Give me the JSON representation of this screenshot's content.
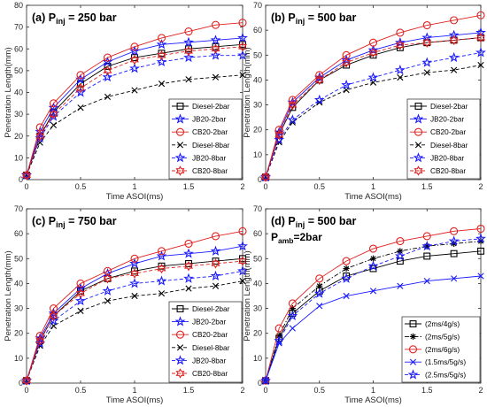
{
  "chart_data": [
    {
      "type": "line",
      "title": "(a) P",
      "title_sub": "inj",
      "title_rest": " = 250 bar",
      "xlabel": "Time ASOI(ms)",
      "ylabel": "Penetration Length(mm)",
      "xlim": [
        0,
        2
      ],
      "ylim": [
        0,
        80
      ],
      "xticks": [
        0,
        0.5,
        1,
        1.5,
        2
      ],
      "xtick_labels": [
        "0",
        "0.5",
        "1",
        "1.5",
        "2"
      ],
      "yticks": [
        0,
        10,
        20,
        30,
        40,
        50,
        60,
        70,
        80
      ],
      "ytick_labels": [
        "0",
        "10",
        "20",
        "30",
        "40",
        "50",
        "60",
        "70",
        "80"
      ],
      "grid": false,
      "legend_position": "bottom-right",
      "x": [
        0,
        0.125,
        0.25,
        0.5,
        0.75,
        1,
        1.25,
        1.5,
        1.75,
        2
      ],
      "series": [
        {
          "name": "Diesel-2bar",
          "color": "#000000",
          "line": "solid",
          "marker": "square",
          "values": [
            2,
            20,
            31,
            44,
            52,
            56,
            58,
            60,
            61,
            62
          ]
        },
        {
          "name": "JB20-2bar",
          "color": "#1a1aff",
          "line": "solid",
          "marker": "star",
          "values": [
            2,
            22,
            33,
            46,
            54,
            59,
            62,
            63,
            64,
            65
          ]
        },
        {
          "name": "CB20-2bar",
          "color": "#e0201e",
          "line": "solid",
          "marker": "circle",
          "values": [
            2,
            24,
            35,
            48,
            56,
            61,
            65,
            68,
            71,
            72
          ]
        },
        {
          "name": "Diesel-8bar",
          "color": "#000000",
          "line": "dashed",
          "marker": "x",
          "values": [
            2,
            17,
            25,
            33,
            38,
            41,
            44,
            46,
            47,
            48
          ]
        },
        {
          "name": "JB20-8bar",
          "color": "#1a1aff",
          "line": "dashed",
          "marker": "star",
          "values": [
            2,
            19,
            29,
            40,
            47,
            51,
            54,
            56,
            57,
            57
          ]
        },
        {
          "name": "CB20-8bar",
          "color": "#e0201e",
          "line": "dashed",
          "marker": "hexagram",
          "values": [
            2,
            20,
            30,
            42,
            50,
            55,
            57,
            59,
            60,
            61
          ]
        }
      ]
    },
    {
      "type": "line",
      "title": "(b) P",
      "title_sub": "inj",
      "title_rest": " = 500 bar",
      "xlabel": "Time ASOI(ms)",
      "ylabel": "Penetration Length(mm)",
      "xlim": [
        0,
        2
      ],
      "ylim": [
        0,
        70
      ],
      "xticks": [
        0,
        0.5,
        1,
        1.5,
        2
      ],
      "xtick_labels": [
        "0",
        "0.5",
        "1",
        "1.5",
        "2"
      ],
      "yticks": [
        0,
        10,
        20,
        30,
        40,
        50,
        60,
        70
      ],
      "ytick_labels": [
        "0",
        "10",
        "20",
        "30",
        "40",
        "50",
        "60",
        "70"
      ],
      "grid": false,
      "legend_position": "bottom-right",
      "x": [
        0,
        0.125,
        0.25,
        0.5,
        0.75,
        1,
        1.25,
        1.5,
        1.75,
        2
      ],
      "series": [
        {
          "name": "Diesel-2bar",
          "color": "#000000",
          "line": "solid",
          "marker": "square",
          "values": [
            1,
            18,
            29,
            40,
            46,
            50,
            53,
            55,
            56,
            57
          ]
        },
        {
          "name": "JB20-2bar",
          "color": "#1a1aff",
          "line": "solid",
          "marker": "star",
          "values": [
            1,
            19,
            31,
            41,
            48,
            52,
            55,
            57,
            58,
            59
          ]
        },
        {
          "name": "CB20-2bar",
          "color": "#e0201e",
          "line": "solid",
          "marker": "circle",
          "values": [
            1,
            20,
            32,
            42,
            50,
            55,
            59,
            62,
            64,
            66
          ]
        },
        {
          "name": "Diesel-8bar",
          "color": "#000000",
          "line": "dashed",
          "marker": "x",
          "values": [
            1,
            15,
            23,
            31,
            36,
            39,
            41,
            43,
            44,
            46
          ]
        },
        {
          "name": "JB20-8bar",
          "color": "#1a1aff",
          "line": "dashed",
          "marker": "star",
          "values": [
            1,
            16,
            24,
            32,
            38,
            41,
            44,
            47,
            49,
            51
          ]
        },
        {
          "name": "CB20-8bar",
          "color": "#e0201e",
          "line": "dashed",
          "marker": "hexagram",
          "values": [
            1,
            18,
            30,
            40,
            47,
            51,
            54,
            55,
            56,
            57
          ]
        }
      ]
    },
    {
      "type": "line",
      "title": "(c) P",
      "title_sub": "inj",
      "title_rest": " = 750 bar",
      "xlabel": "Time ASOI(ms)",
      "ylabel": "Penetration Length(mm)",
      "xlim": [
        0,
        2
      ],
      "ylim": [
        0,
        70
      ],
      "xticks": [
        0,
        0.5,
        1,
        1.5,
        2
      ],
      "xtick_labels": [
        "0",
        "0.5",
        "1",
        "1.5",
        "2"
      ],
      "yticks": [
        0,
        10,
        20,
        30,
        40,
        50,
        60,
        70
      ],
      "ytick_labels": [
        "0",
        "10",
        "20",
        "30",
        "40",
        "50",
        "60",
        "70"
      ],
      "grid": false,
      "legend_position": "bottom-right",
      "x": [
        0,
        0.125,
        0.25,
        0.5,
        0.75,
        1,
        1.25,
        1.5,
        1.75,
        2
      ],
      "series": [
        {
          "name": "Diesel-2bar",
          "color": "#000000",
          "line": "solid",
          "marker": "square",
          "values": [
            1,
            17,
            27,
            37,
            42,
            45,
            47,
            48,
            49,
            50
          ]
        },
        {
          "name": "JB20-2bar",
          "color": "#1a1aff",
          "line": "solid",
          "marker": "star",
          "values": [
            1,
            18,
            28,
            38,
            44,
            48,
            51,
            52,
            53,
            55
          ]
        },
        {
          "name": "CB20-2bar",
          "color": "#e0201e",
          "line": "solid",
          "marker": "circle",
          "values": [
            1,
            19,
            30,
            40,
            45,
            50,
            53,
            56,
            59,
            61
          ]
        },
        {
          "name": "Diesel-8bar",
          "color": "#000000",
          "line": "dashed",
          "marker": "x",
          "values": [
            1,
            15,
            23,
            29,
            33,
            35,
            36,
            38,
            39,
            41
          ]
        },
        {
          "name": "JB20-8bar",
          "color": "#1a1aff",
          "line": "dashed",
          "marker": "star",
          "values": [
            1,
            16,
            25,
            33,
            37,
            40,
            41,
            42,
            43,
            45
          ]
        },
        {
          "name": "CB20-8bar",
          "color": "#e0201e",
          "line": "dashed",
          "marker": "hexagram",
          "values": [
            1,
            17,
            27,
            36,
            42,
            44,
            46,
            47,
            48,
            49
          ]
        }
      ]
    },
    {
      "type": "line",
      "title": "(d) P",
      "title_sub": "inj",
      "title_rest": " = 500 bar",
      "subtitle": "P",
      "subtitle_sub": "amb",
      "subtitle_rest": "=2bar",
      "xlabel": "Time ASOI(ms)",
      "ylabel": "Penetration Length(mm)",
      "xlim": [
        0,
        2
      ],
      "ylim": [
        0,
        70
      ],
      "xticks": [
        0,
        0.5,
        1,
        1.5,
        2
      ],
      "xtick_labels": [
        "0",
        "0.5",
        "1",
        "1.5",
        "2"
      ],
      "yticks": [
        0,
        10,
        20,
        30,
        40,
        50,
        60,
        70
      ],
      "ytick_labels": [
        "0",
        "10",
        "20",
        "30",
        "40",
        "50",
        "60",
        "70"
      ],
      "grid": false,
      "legend_position": "bottom-right",
      "x": [
        0,
        0.125,
        0.25,
        0.5,
        0.75,
        1,
        1.25,
        1.5,
        1.75,
        2
      ],
      "series": [
        {
          "name": "(2ms/4g/s)",
          "color": "#000000",
          "line": "solid",
          "marker": "square",
          "values": [
            1,
            18,
            28,
            37,
            43,
            46,
            49,
            51,
            52,
            53
          ]
        },
        {
          "name": "(2ms/5g/s)",
          "color": "#000000",
          "line": "dashdot",
          "marker": "asterisk",
          "values": [
            1,
            19,
            30,
            39,
            46,
            50,
            53,
            55,
            56,
            57
          ]
        },
        {
          "name": "(2ms/6g/s)",
          "color": "#e0201e",
          "line": "solid",
          "marker": "circle",
          "values": [
            1,
            22,
            32,
            42,
            49,
            54,
            57,
            59,
            61,
            62
          ]
        },
        {
          "name": "(1.5ms/5g/s)",
          "color": "#1a1aff",
          "line": "solid",
          "marker": "x",
          "values": [
            1,
            16,
            22,
            31,
            35,
            37,
            39,
            41,
            42,
            43
          ]
        },
        {
          "name": "(2.5ms/5g/s)",
          "color": "#1a1aff",
          "line": "dashed",
          "marker": "star",
          "values": [
            1,
            17,
            27,
            36,
            42,
            47,
            51,
            55,
            57,
            58
          ]
        }
      ]
    }
  ]
}
